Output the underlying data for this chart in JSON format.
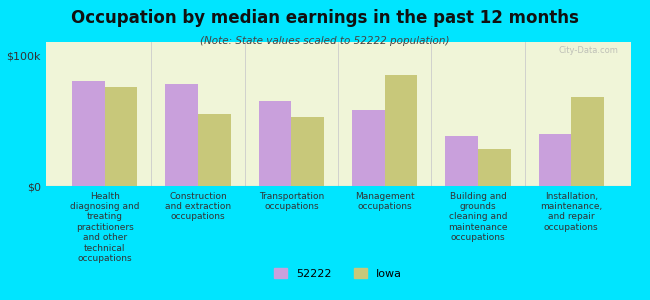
{
  "title": "Occupation by median earnings in the past 12 months",
  "subtitle": "(Note: State values scaled to 52222 population)",
  "categories": [
    "Health\ndiagnosing and\ntreating\npractitioners\nand other\ntechnical\noccupations",
    "Construction\nand extraction\noccupations",
    "Transportation\noccupations",
    "Management\noccupations",
    "Building and\ngrounds\ncleaning and\nmaintenance\noccupations",
    "Installation,\nmaintenance,\nand repair\noccupations"
  ],
  "values_52222": [
    80000,
    78000,
    65000,
    58000,
    38000,
    40000
  ],
  "values_iowa": [
    76000,
    55000,
    53000,
    85000,
    28000,
    68000
  ],
  "color_52222": "#c9a0dc",
  "color_iowa": "#c8c87a",
  "background_color": "#00e5ff",
  "plot_bg_color": "#f0f5d8",
  "ylim": [
    0,
    110000
  ],
  "yticks": [
    0,
    100000
  ],
  "ytick_labels": [
    "$0",
    "$100k"
  ],
  "legend_label_52222": "52222",
  "legend_label_iowa": "Iowa",
  "watermark": "City-Data.com"
}
